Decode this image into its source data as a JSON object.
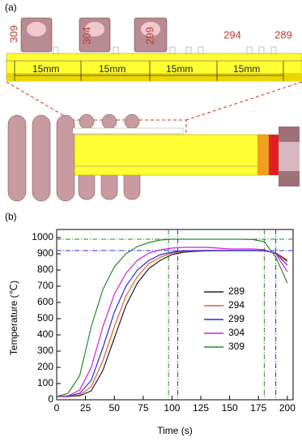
{
  "panel_a": {
    "label": "(a)",
    "position_labels": [
      "309",
      "304",
      "299",
      "294",
      "289"
    ],
    "dimension_labels": [
      "15mm",
      "15mm",
      "15mm",
      "15mm"
    ]
  },
  "chart_data": {
    "type": "line",
    "panel_label": "(b)",
    "x_label": "Time (s)",
    "y_label": "Temperature (℃)",
    "x": [
      0,
      10,
      20,
      30,
      40,
      50,
      60,
      70,
      80,
      90,
      100,
      110,
      120,
      130,
      140,
      150,
      160,
      170,
      180,
      190,
      200
    ],
    "series": [
      {
        "name": "289",
        "color": "#222222",
        "values": [
          20,
          20,
          25,
          55,
          180,
          380,
          580,
          720,
          810,
          860,
          895,
          910,
          915,
          918,
          920,
          920,
          920,
          920,
          918,
          905,
          860
        ]
      },
      {
        "name": "294",
        "color": "#e0602a",
        "values": [
          20,
          21,
          30,
          80,
          240,
          450,
          640,
          760,
          840,
          880,
          905,
          915,
          918,
          920,
          920,
          920,
          920,
          920,
          918,
          905,
          850
        ]
      },
      {
        "name": "299",
        "color": "#2a2ae0",
        "values": [
          20,
          22,
          40,
          120,
          320,
          540,
          700,
          800,
          860,
          895,
          910,
          918,
          920,
          920,
          920,
          920,
          920,
          920,
          920,
          905,
          830
        ]
      },
      {
        "name": "304",
        "color": "#d020d8",
        "values": [
          20,
          25,
          60,
          200,
          450,
          650,
          780,
          860,
          905,
          925,
          935,
          940,
          940,
          940,
          935,
          930,
          930,
          930,
          925,
          900,
          790
        ]
      },
      {
        "name": "309",
        "color": "#2a8a2a",
        "values": [
          20,
          40,
          150,
          450,
          680,
          820,
          900,
          945,
          970,
          985,
          990,
          990,
          990,
          990,
          990,
          990,
          990,
          988,
          975,
          880,
          720
        ]
      }
    ],
    "xlim": [
      0,
      205
    ],
    "xticks": [
      0,
      25,
      50,
      75,
      100,
      125,
      150,
      175,
      200
    ],
    "ylim": [
      0,
      1050
    ],
    "yticks": [
      0,
      100,
      200,
      300,
      400,
      500,
      600,
      700,
      800,
      900,
      1000
    ],
    "grid": false,
    "reference_lines": {
      "horizontal": [
        {
          "value": 990,
          "color": "#2a8a2a"
        },
        {
          "value": 920,
          "color": "#2a2ae0"
        }
      ],
      "vertical": [
        {
          "value": 97,
          "color": "#2a8a2a"
        },
        {
          "value": 105,
          "color": "#2a2ae0"
        },
        {
          "value": 180,
          "color": "#2a8a2a"
        },
        {
          "value": 190,
          "color": "#2a2ae0"
        }
      ]
    }
  }
}
